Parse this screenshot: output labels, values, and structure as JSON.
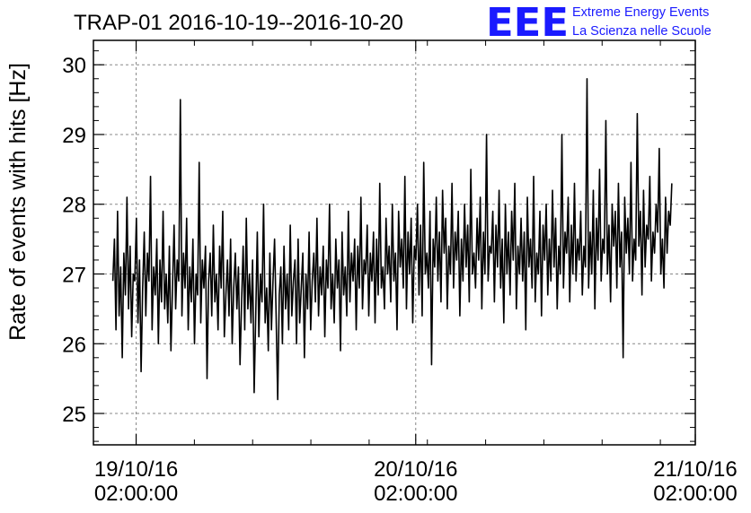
{
  "chart_data": {
    "type": "line",
    "title": "TRAP-01 2016-10-19--2016-10-20",
    "logo": {
      "mark": "EEE",
      "line1": "Extreme Energy Events",
      "line2": "La Scienza nelle Scuole",
      "color": "#1a1aff"
    },
    "ylabel": "Rate of events with hits [Hz]",
    "xlabel": "",
    "ylim": [
      24.55,
      30.35
    ],
    "yticks": [
      25,
      26,
      27,
      28,
      29,
      30
    ],
    "xlim": [
      "2016-10-18 22:20:00",
      "2016-10-21 02:00:00"
    ],
    "xticks": [
      {
        "date": "2016-10-19 02:00:00",
        "label1": "19/10/16",
        "label2": "02:00:00"
      },
      {
        "date": "2016-10-20 02:00:00",
        "label1": "20/10/16",
        "label2": "02:00:00"
      },
      {
        "date": "2016-10-21 02:00:00",
        "label1": "21/10/16",
        "label2": "02:00:00"
      }
    ],
    "grid": true,
    "line_color": "#000000",
    "series": [
      {
        "x_start": "2016-10-19 00:00:00",
        "x_end": "2016-10-20 23:59:00",
        "values": [
          26.9,
          27.5,
          26.2,
          27.9,
          26.4,
          27.1,
          25.8,
          27.3,
          26.7,
          28.1,
          26.5,
          27.4,
          26.1,
          27.0,
          26.9,
          27.8,
          26.3,
          27.2,
          25.6,
          26.8,
          27.6,
          26.4,
          27.3,
          26.9,
          28.4,
          26.2,
          27.1,
          26.7,
          27.5,
          26.0,
          27.2,
          26.6,
          27.9,
          26.5,
          27.0,
          26.3,
          27.4,
          25.9,
          26.8,
          27.7,
          26.5,
          27.2,
          26.9,
          29.5,
          26.4,
          27.3,
          26.8,
          27.8,
          26.2,
          27.1,
          26.6,
          27.5,
          26.0,
          27.0,
          26.7,
          28.6,
          26.3,
          27.2,
          26.8,
          27.4,
          25.5,
          26.9,
          27.3,
          26.4,
          27.7,
          26.6,
          27.0,
          26.2,
          27.4,
          26.8,
          27.9,
          26.1,
          26.7,
          27.2,
          26.4,
          27.5,
          26.0,
          26.8,
          27.3,
          26.5,
          27.1,
          25.7,
          26.6,
          27.4,
          26.2,
          27.8,
          26.5,
          27.0,
          26.3,
          27.2,
          25.3,
          26.4,
          27.6,
          26.1,
          27.0,
          26.6,
          28.0,
          26.3,
          26.8,
          25.9,
          27.3,
          26.2,
          26.9,
          27.5,
          26.4,
          25.2,
          26.7,
          27.1,
          26.0,
          27.4,
          26.5,
          27.0,
          26.2,
          27.7,
          26.4,
          26.9,
          27.2,
          26.0,
          27.5,
          26.3,
          26.8,
          27.3,
          25.8,
          27.0,
          26.5,
          27.6,
          26.2,
          26.9,
          27.3,
          26.6,
          27.8,
          26.4,
          27.1,
          26.7,
          27.4,
          26.1,
          27.2,
          26.8,
          28.0,
          26.5,
          27.0,
          26.3,
          27.5,
          26.8,
          27.2,
          25.9,
          27.6,
          26.7,
          27.1,
          26.4,
          27.9,
          26.6,
          27.3,
          26.9,
          27.5,
          26.2,
          27.4,
          26.8,
          28.1,
          26.5,
          27.2,
          27.0,
          27.7,
          26.4,
          27.3,
          26.9,
          27.6,
          26.3,
          27.5,
          26.7,
          28.3,
          26.8,
          27.1,
          26.5,
          27.8,
          27.0,
          27.4,
          26.6,
          28.0,
          26.9,
          27.3,
          26.2,
          27.9,
          27.1,
          27.5,
          26.8,
          28.4,
          26.5,
          27.6,
          27.0,
          27.8,
          26.3,
          27.4,
          27.2,
          28.0,
          26.7,
          27.7,
          26.4,
          28.6,
          27.0,
          27.3,
          26.8,
          27.9,
          25.7,
          27.5,
          27.1,
          28.1,
          26.9,
          27.6,
          26.6,
          28.2,
          27.3,
          27.8,
          26.5,
          27.4,
          27.0,
          28.3,
          26.8,
          27.6,
          27.2,
          27.9,
          26.4,
          27.5,
          26.9,
          28.0,
          27.1,
          27.7,
          26.6,
          28.5,
          27.0,
          27.3,
          26.8,
          27.8,
          27.2,
          28.1,
          26.5,
          27.6,
          27.0,
          29.0,
          26.9,
          27.4,
          27.3,
          27.9,
          26.6,
          27.7,
          27.1,
          28.2,
          26.8,
          27.5,
          26.3,
          28.0,
          27.0,
          27.6,
          26.7,
          27.9,
          27.2,
          28.3,
          26.5,
          27.4,
          27.0,
          27.8,
          26.9,
          27.6,
          26.2,
          28.1,
          27.1,
          27.5,
          26.8,
          28.4,
          26.6,
          27.3,
          27.0,
          27.9,
          26.4,
          27.7,
          27.2,
          28.0,
          26.7,
          27.5,
          26.9,
          28.2,
          27.1,
          27.8,
          26.5,
          27.4,
          27.0,
          29.0,
          26.8,
          27.6,
          27.3,
          28.1,
          26.6,
          27.7,
          27.0,
          28.3,
          26.9,
          27.5,
          27.2,
          27.9,
          26.7,
          27.4,
          27.1,
          29.8,
          26.8,
          27.6,
          27.0,
          28.2,
          26.5,
          27.8,
          27.2,
          28.5,
          26.9,
          27.5,
          27.3,
          29.2,
          27.0,
          27.7,
          26.6,
          28.0,
          27.4,
          27.9,
          26.8,
          28.3,
          27.1,
          27.6,
          25.8,
          28.1,
          27.3,
          27.8,
          27.0,
          28.6,
          26.9,
          27.5,
          27.2,
          29.3,
          27.4,
          27.9,
          26.7,
          28.2,
          27.1,
          27.7,
          27.5,
          28.4,
          26.9,
          27.6,
          27.3,
          28.0,
          27.6,
          28.8,
          27.0,
          27.5,
          26.8,
          28.1,
          27.3,
          27.9,
          27.7,
          28.3
        ]
      }
    ]
  }
}
